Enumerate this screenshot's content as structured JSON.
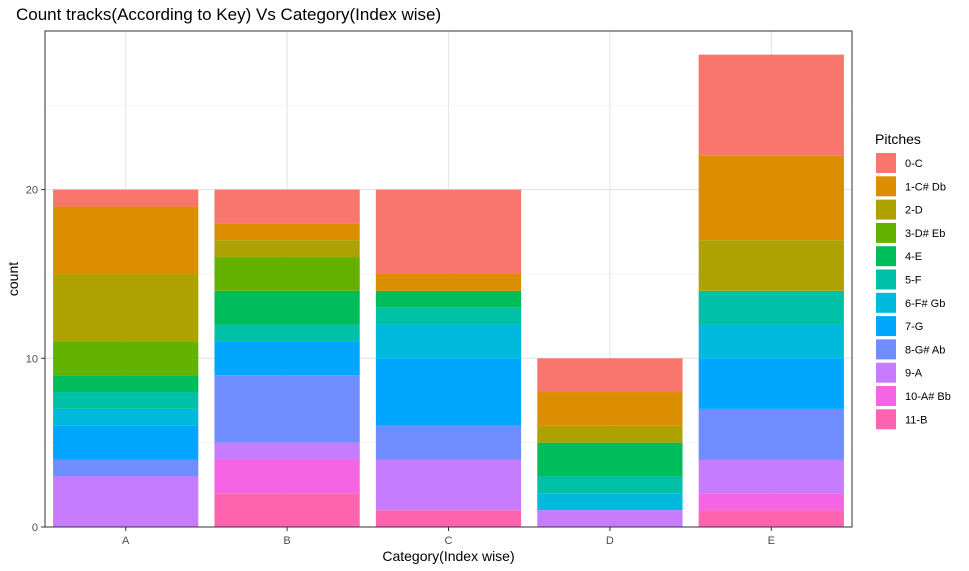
{
  "chart_data": {
    "type": "bar",
    "stacked": true,
    "title": "Count tracks(According to Key) Vs Category(Index wise)",
    "xlabel": "Category(Index wise)",
    "ylabel": "count",
    "categories": [
      "A",
      "B",
      "C",
      "D",
      "E"
    ],
    "ylim": [
      0,
      29.4
    ],
    "yticks": [
      0,
      10,
      20
    ],
    "grid": true,
    "legend_title": "Pitches",
    "legend_position": "right",
    "series": [
      {
        "name": "0-C",
        "color": "#F8766D",
        "values": [
          1,
          2,
          5,
          2,
          6
        ]
      },
      {
        "name": "1-C# Db",
        "color": "#DB8E00",
        "values": [
          4,
          1,
          1,
          2,
          5
        ]
      },
      {
        "name": "2-D",
        "color": "#AEA200",
        "values": [
          4,
          1,
          0,
          1,
          3
        ]
      },
      {
        "name": "3-D# Eb",
        "color": "#64B200",
        "values": [
          2,
          2,
          0,
          0,
          0
        ]
      },
      {
        "name": "4-E",
        "color": "#00BD5C",
        "values": [
          1,
          2,
          1,
          2,
          0
        ]
      },
      {
        "name": "5-F",
        "color": "#00C1A7",
        "values": [
          1,
          1,
          1,
          1,
          2
        ]
      },
      {
        "name": "6-F# Gb",
        "color": "#00BADE",
        "values": [
          1,
          0,
          2,
          1,
          2
        ]
      },
      {
        "name": "7-G",
        "color": "#00A6FF",
        "values": [
          2,
          2,
          4,
          0,
          3
        ]
      },
      {
        "name": "8-G# Ab",
        "color": "#6F8DFF",
        "values": [
          1,
          4,
          2,
          0,
          3
        ]
      },
      {
        "name": "9-A",
        "color": "#C77CFF",
        "values": [
          3,
          1,
          3,
          1,
          2
        ]
      },
      {
        "name": "10-A# Bb",
        "color": "#F564E3",
        "values": [
          0,
          2,
          0,
          0,
          1
        ]
      },
      {
        "name": "11-B",
        "color": "#FF64B0",
        "values": [
          0,
          2,
          1,
          0,
          1
        ]
      }
    ]
  }
}
